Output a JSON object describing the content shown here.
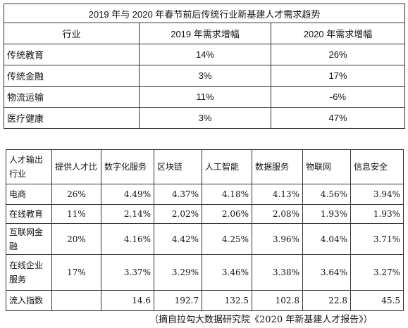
{
  "table1": {
    "title": "2019 年与 2020 年春节前后传统行业新基建人才需求趋势",
    "header": [
      "行业",
      "2019 年需求增幅",
      "2020 年需求增幅"
    ],
    "rows": [
      [
        "传统教育",
        "14%",
        "26%"
      ],
      [
        "传统金融",
        "3%",
        "17%"
      ],
      [
        "物流运输",
        "11%",
        "-6%"
      ],
      [
        "医疗健康",
        "3%",
        "47%"
      ]
    ]
  },
  "table2": {
    "header": [
      "人才输出行业",
      "提供人才比",
      "数字化服务",
      "区块链",
      "人工智能",
      "数据服务",
      "物联网",
      "信息安全"
    ],
    "rows": [
      [
        "电商",
        "26%",
        "4.49%",
        "4.37%",
        "4.18%",
        "4.13%",
        "4.56%",
        "3.94%"
      ],
      [
        "在线教育",
        "11%",
        "2.14%",
        "2.02%",
        "2.06%",
        "2.08%",
        "1.93%",
        "1.93%"
      ],
      [
        "互联网金融",
        "20%",
        "4.16%",
        "4.42%",
        "4.25%",
        "3.96%",
        "4.04%",
        "3.71%"
      ],
      [
        "在线企业服务",
        "17%",
        "3.37%",
        "3.29%",
        "3.46%",
        "3.38%",
        "3.64%",
        "3.27%"
      ],
      [
        "流入指数",
        null,
        "14.6",
        "192.7",
        "132.5",
        "102.8",
        "22.8",
        "45.5"
      ]
    ]
  },
  "source": "（摘自拉勾大数据研究院《2020 年新基建人才报告》）"
}
